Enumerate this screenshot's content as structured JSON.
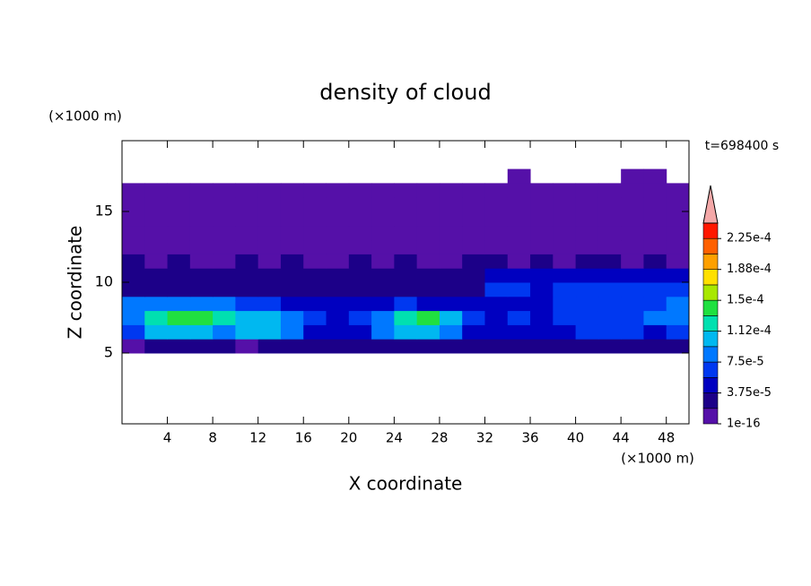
{
  "chart_data": {
    "type": "contour",
    "title": "density of cloud",
    "x_label": "X coordinate",
    "y_label": "Z coordinate",
    "x_unit": "(×1000 m)",
    "y_unit": "(×1000 m)",
    "time_label": "t=698400 s",
    "xlim": [
      0,
      50
    ],
    "ylim": [
      0,
      20
    ],
    "xticks": [
      4,
      8,
      12,
      16,
      20,
      24,
      28,
      32,
      36,
      40,
      44,
      48
    ],
    "yticks": [
      5,
      10,
      15
    ],
    "x_edges": [
      0,
      2,
      4,
      6,
      8,
      10,
      12,
      14,
      16,
      18,
      20,
      22,
      24,
      26,
      28,
      30,
      32,
      34,
      36,
      38,
      40,
      42,
      44,
      46,
      48,
      50
    ],
    "y_edges": [
      5,
      6,
      7,
      8,
      9,
      10,
      11,
      12,
      13,
      14,
      15,
      16,
      17,
      18
    ],
    "values": [
      [
        1e-05,
        2e-05,
        2e-05,
        2e-05,
        2e-05,
        1e-05,
        2e-05,
        2e-05,
        2e-05,
        2e-05,
        2e-05,
        2e-05,
        2e-05,
        2e-05,
        2e-05,
        2e-05,
        2e-05,
        2e-05,
        2e-05,
        2e-05,
        2e-05,
        2e-05,
        2e-05,
        2e-05,
        2e-05
      ],
      [
        6e-05,
        0.0001,
        0.0001,
        0.0001,
        9e-05,
        0.0001,
        0.0001,
        8e-05,
        5e-05,
        4e-05,
        5e-05,
        8e-05,
        0.0001,
        0.0001,
        9e-05,
        4e-05,
        4e-05,
        5e-05,
        4e-05,
        5e-05,
        6e-05,
        6e-05,
        6e-05,
        5e-05,
        6e-05
      ],
      [
        8e-05,
        0.00012,
        0.000135,
        0.000135,
        0.00013,
        0.00011,
        0.00011,
        9e-05,
        6e-05,
        5e-05,
        6e-05,
        9e-05,
        0.00012,
        0.000135,
        0.00011,
        6e-05,
        5e-05,
        6e-05,
        5e-05,
        6e-05,
        7e-05,
        6e-05,
        7e-05,
        8e-05,
        9e-05
      ],
      [
        8e-05,
        9e-05,
        9e-05,
        8e-05,
        8e-05,
        7e-05,
        6e-05,
        5e-05,
        4e-05,
        4e-05,
        4e-05,
        5e-05,
        6e-05,
        5e-05,
        4e-05,
        4e-05,
        5e-05,
        5e-05,
        5e-05,
        6e-05,
        6e-05,
        7e-05,
        6e-05,
        7e-05,
        8e-05
      ],
      [
        3e-05,
        3e-05,
        3e-05,
        3e-05,
        3e-05,
        3e-05,
        3e-05,
        3e-05,
        3e-05,
        3e-05,
        3e-05,
        3e-05,
        3e-05,
        3e-05,
        3e-05,
        3e-05,
        6e-05,
        6e-05,
        5e-05,
        6e-05,
        7e-05,
        7e-05,
        7e-05,
        6e-05,
        6e-05
      ],
      [
        2.5e-05,
        2.5e-05,
        2.5e-05,
        2.5e-05,
        2.5e-05,
        2.5e-05,
        2.5e-05,
        2.5e-05,
        2.5e-05,
        2.5e-05,
        2.5e-05,
        2.5e-05,
        2.5e-05,
        2.5e-05,
        2.5e-05,
        2.5e-05,
        4e-05,
        4e-05,
        4e-05,
        4e-05,
        4e-05,
        4e-05,
        4e-05,
        4e-05,
        4e-05
      ],
      [
        2e-05,
        1e-05,
        2e-05,
        1e-05,
        1e-05,
        2e-05,
        1e-05,
        2e-05,
        1e-05,
        1e-05,
        2e-05,
        1e-05,
        2e-05,
        1e-05,
        1e-05,
        2e-05,
        2e-05,
        1e-05,
        2e-05,
        1e-05,
        2e-05,
        2e-05,
        1e-05,
        2e-05,
        1e-05
      ],
      [
        5e-06,
        5e-06,
        5e-06,
        5e-06,
        5e-06,
        5e-06,
        5e-06,
        5e-06,
        5e-06,
        5e-06,
        5e-06,
        5e-06,
        5e-06,
        5e-06,
        5e-06,
        5e-06,
        5e-06,
        5e-06,
        5e-06,
        5e-06,
        5e-06,
        5e-06,
        5e-06,
        5e-06,
        5e-06
      ],
      [
        5e-06,
        5e-06,
        5e-06,
        5e-06,
        5e-06,
        5e-06,
        5e-06,
        5e-06,
        5e-06,
        5e-06,
        5e-06,
        5e-06,
        5e-06,
        5e-06,
        5e-06,
        5e-06,
        5e-06,
        5e-06,
        5e-06,
        5e-06,
        5e-06,
        5e-06,
        5e-06,
        5e-06,
        5e-06
      ],
      [
        5e-06,
        5e-06,
        5e-06,
        5e-06,
        5e-06,
        5e-06,
        5e-06,
        5e-06,
        5e-06,
        5e-06,
        5e-06,
        5e-06,
        5e-06,
        5e-06,
        5e-06,
        5e-06,
        5e-06,
        5e-06,
        5e-06,
        5e-06,
        5e-06,
        5e-06,
        5e-06,
        5e-06,
        5e-06
      ],
      [
        5e-06,
        5e-06,
        5e-06,
        5e-06,
        5e-06,
        5e-06,
        5e-06,
        5e-06,
        5e-06,
        5e-06,
        5e-06,
        5e-06,
        5e-06,
        5e-06,
        5e-06,
        5e-06,
        5e-06,
        5e-06,
        5e-06,
        5e-06,
        5e-06,
        5e-06,
        5e-06,
        5e-06,
        5e-06
      ],
      [
        5e-06,
        5e-06,
        5e-06,
        5e-06,
        5e-06,
        5e-06,
        5e-06,
        5e-06,
        5e-06,
        5e-06,
        5e-06,
        5e-06,
        5e-06,
        5e-06,
        5e-06,
        5e-06,
        5e-06,
        5e-06,
        5e-06,
        5e-06,
        5e-06,
        5e-06,
        5e-06,
        5e-06,
        5e-06
      ],
      [
        null,
        null,
        null,
        null,
        null,
        null,
        null,
        null,
        null,
        null,
        null,
        null,
        null,
        null,
        null,
        null,
        null,
        5e-06,
        null,
        null,
        null,
        null,
        5e-06,
        5e-06,
        null
      ]
    ],
    "colorbar": {
      "clim": [
        1e-16,
        0.00024375
      ],
      "levels": [
        1e-16,
        1.875e-05,
        3.75e-05,
        5.625e-05,
        7.5e-05,
        9.375e-05,
        0.0001125,
        0.00013125,
        0.00015,
        0.00016875,
        0.0001875,
        0.00020625,
        0.000225,
        0.00024375
      ],
      "colors": [
        "#5510a8",
        "#1c0088",
        "#0000c0",
        "#0038f0",
        "#0078ff",
        "#00b8f0",
        "#00e0b0",
        "#20e040",
        "#a8e800",
        "#ffe000",
        "#ffa000",
        "#ff6000",
        "#ff1800"
      ],
      "extend_color": "#f4a8a8",
      "ticks": [
        {
          "value": 1e-16,
          "label": "1e-16"
        },
        {
          "value": 3.75e-05,
          "label": "3.75e-5"
        },
        {
          "value": 7.5e-05,
          "label": "7.5e-5"
        },
        {
          "value": 0.0001125,
          "label": "1.12e-4"
        },
        {
          "value": 0.00015,
          "label": "1.5e-4"
        },
        {
          "value": 0.0001875,
          "label": "1.88e-4"
        },
        {
          "value": 0.000225,
          "label": "2.25e-4"
        }
      ]
    }
  }
}
